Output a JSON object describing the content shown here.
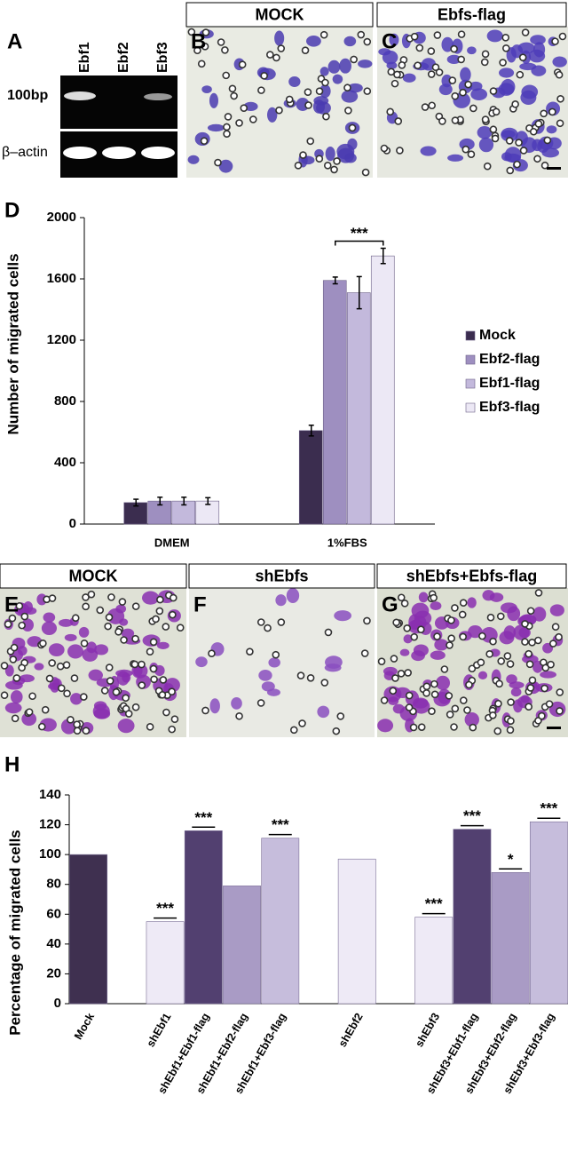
{
  "panel_labels": [
    "A",
    "B",
    "C",
    "D",
    "E",
    "F",
    "G",
    "H"
  ],
  "gel": {
    "lanes": [
      "Ebf1",
      "Ebf2",
      "Ebf3"
    ],
    "rows": [
      "100bp",
      "β–actin"
    ]
  },
  "micrographs_top": [
    "MOCK",
    "Ebfs-flag"
  ],
  "micrographs_bottom": [
    "MOCK",
    "shEbfs",
    "shEbfs+Ebfs-flag"
  ],
  "chart_data": [
    {
      "type": "bar",
      "y_label": "Number of migrated cells",
      "categories": [
        "DMEM",
        "1%FBS"
      ],
      "series": [
        {
          "name": "Mock",
          "color": "#3b2d4f",
          "values": [
            140,
            610
          ],
          "errors": [
            22,
            35
          ]
        },
        {
          "name": "Ebf2-flag",
          "color": "#9e8fc0",
          "values": [
            150,
            1590
          ],
          "errors": [
            25,
            22
          ]
        },
        {
          "name": "Ebf1-flag",
          "color": "#c3b9dc",
          "values": [
            150,
            1510
          ],
          "errors": [
            25,
            105
          ]
        },
        {
          "name": "Ebf3-flag",
          "color": "#ece8f5",
          "values": [
            150,
            1750
          ],
          "errors": [
            22,
            50
          ]
        }
      ],
      "annotation": "***",
      "ylim": [
        0,
        2000
      ],
      "yticks": [
        0,
        400,
        800,
        1200,
        1600,
        2000
      ],
      "legend": "right"
    },
    {
      "type": "bar",
      "y_label": "Percentage of migrated cells",
      "categories": [
        "Mock",
        null,
        "shEbf1",
        "shEbf1+Ebf1-flag",
        "shEbf1+Ebf2-flag",
        "shEbf1+Ebf3-flag",
        null,
        "shEbf2",
        null,
        "shEbf3",
        "shEbf3+Ebf1-flag",
        "shEbf3+Ebf2-flag",
        "shEbf3+Ebf3-flag"
      ],
      "values": [
        100,
        null,
        55,
        116,
        79,
        111,
        null,
        97,
        null,
        58,
        117,
        88,
        122
      ],
      "colors": [
        "#3f3050",
        null,
        "#eeeaf6",
        "#524070",
        "#a99bc5",
        "#c6bddc",
        null,
        "#eeeaf6",
        null,
        "#eeeaf6",
        "#524070",
        "#a99bc5",
        "#c6bddc"
      ],
      "significance": [
        null,
        null,
        "***",
        "***",
        null,
        "***",
        null,
        null,
        null,
        "***",
        "***",
        "*",
        "***"
      ],
      "ylim": [
        0,
        140
      ],
      "yticks": [
        0,
        20,
        40,
        60,
        80,
        100,
        120,
        140
      ]
    }
  ]
}
